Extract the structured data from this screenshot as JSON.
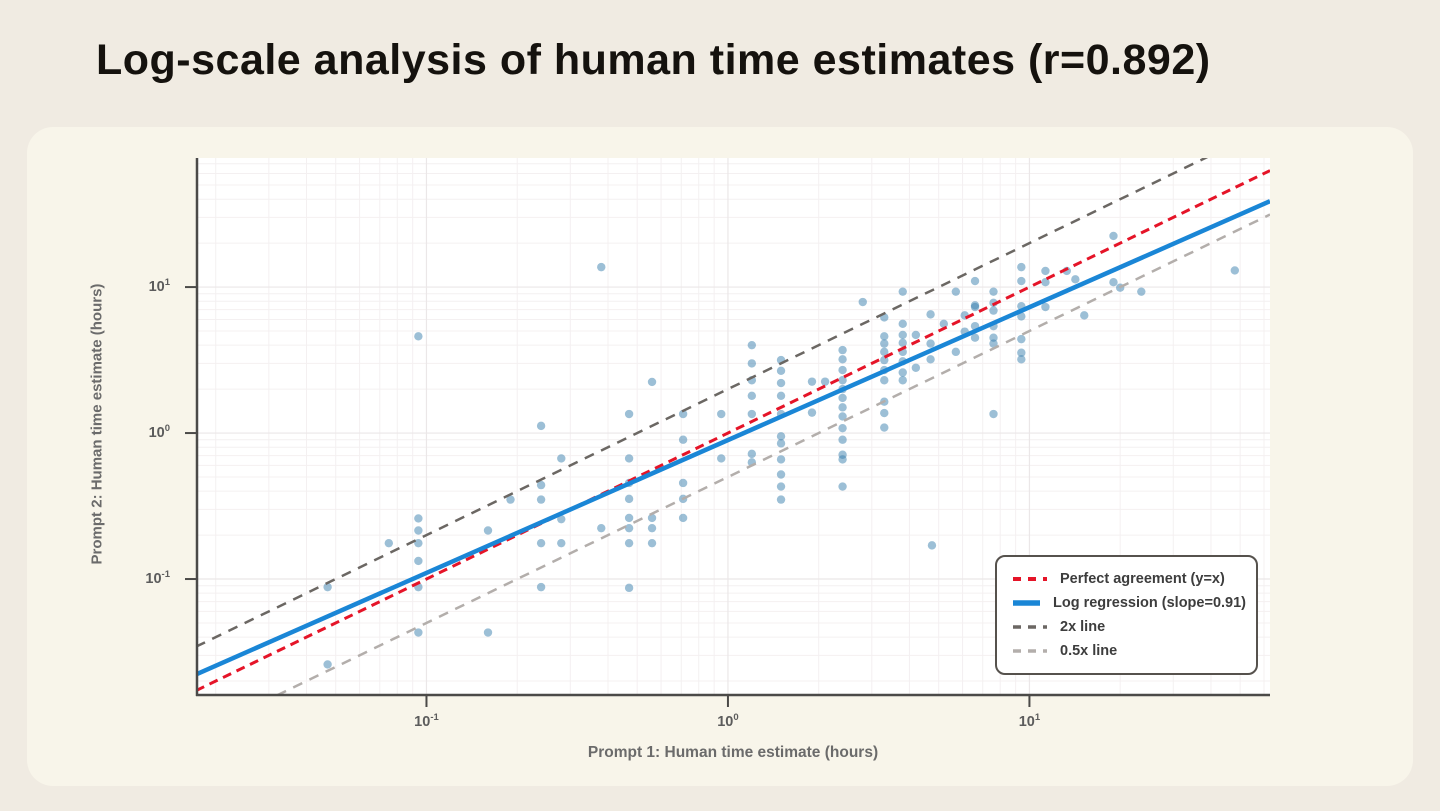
{
  "title": "Log-scale analysis of human time estimates (r=0.892)",
  "stats": {
    "correlation_r": 0.892,
    "regression_slope": 0.91
  },
  "colors": {
    "page_background": "#f0ebe2",
    "card_background": "#f8f5ea",
    "plot_background": "#ffffff",
    "axis": "#4b4a48",
    "tick_label": "#5c5c5c",
    "grid_minor": "#f4f0f1",
    "grid_major": "#ebe7e8",
    "point": "#3a7fae",
    "identity_line": "#e51428",
    "regression_line": "#1a86d6",
    "double_line": "#6b6763",
    "half_line": "#b3aeab"
  },
  "chart_data": {
    "type": "scatter",
    "title": "Log-scale analysis of human time estimates (r=0.892)",
    "xlabel": "Prompt 1: Human time estimate (hours)",
    "ylabel": "Prompt 2: Human time estimate (hours)",
    "x_scale": "log",
    "y_scale": "log",
    "xlim": [
      0.0172,
      62.8
    ],
    "ylim": [
      0.0158,
      76.6
    ],
    "grid": true,
    "x_ticks": [
      {
        "value": 0.1,
        "label": "10⁻¹",
        "exp": "-1"
      },
      {
        "value": 1,
        "label": "10⁰",
        "exp": "0"
      },
      {
        "value": 10,
        "label": "10¹",
        "exp": "1"
      }
    ],
    "y_ticks": [
      {
        "value": 0.1,
        "label": "10⁻¹",
        "exp": "-1"
      },
      {
        "value": 1,
        "label": "10⁰",
        "exp": "0"
      },
      {
        "value": 10,
        "label": "10¹",
        "exp": "1"
      }
    ],
    "lines": [
      {
        "id": "half-line",
        "label": "0.5x line",
        "slope_log": 1,
        "intercept_log10": -0.30103,
        "color": "#b3aeab",
        "dash": [
          10,
          8
        ],
        "width": 2.5
      },
      {
        "id": "double-line",
        "label": "2x line",
        "slope_log": 1,
        "intercept_log10": 0.30103,
        "color": "#6b6763",
        "dash": [
          10,
          8
        ],
        "width": 2.5
      },
      {
        "id": "identity-line",
        "label": "Perfect agreement (y=x)",
        "slope_log": 1,
        "intercept_log10": 0,
        "color": "#e51428",
        "dash": [
          9,
          6
        ],
        "width": 3
      },
      {
        "id": "regression-line",
        "label": "Log regression (slope=0.91)",
        "slope_log": 0.91,
        "intercept_log10": -0.048,
        "color": "#1a86d6",
        "dash": null,
        "width": 4.5
      }
    ],
    "legend": {
      "position": "lower-right",
      "entries": [
        {
          "label": "Perfect agreement (y=x)",
          "color": "#e51428",
          "dashed": true,
          "width": 3
        },
        {
          "label": "Log regression (slope=0.91)",
          "color": "#1a86d6",
          "dashed": false,
          "width": 4.5
        },
        {
          "label": "2x line",
          "color": "#6b6763",
          "dashed": true,
          "width": 2.5
        },
        {
          "label": "0.5x line",
          "color": "#b3aeab",
          "dashed": true,
          "width": 2.5
        }
      ]
    },
    "point_style": {
      "color": "#3a7fae",
      "opacity": 0.5,
      "radius": 4.2
    },
    "points": [
      [
        0.047,
        0.088
      ],
      [
        0.047,
        0.026
      ],
      [
        0.075,
        0.176
      ],
      [
        0.094,
        4.6
      ],
      [
        0.094,
        0.26
      ],
      [
        0.094,
        0.215
      ],
      [
        0.094,
        0.176
      ],
      [
        0.094,
        0.133
      ],
      [
        0.094,
        0.088
      ],
      [
        0.094,
        0.043
      ],
      [
        0.16,
        0.215
      ],
      [
        0.16,
        0.043
      ],
      [
        0.19,
        0.35
      ],
      [
        0.24,
        1.12
      ],
      [
        0.24,
        0.44
      ],
      [
        0.24,
        0.35
      ],
      [
        0.24,
        0.176
      ],
      [
        0.24,
        0.088
      ],
      [
        0.28,
        0.67
      ],
      [
        0.28,
        0.257
      ],
      [
        0.28,
        0.176
      ],
      [
        0.38,
        13.7
      ],
      [
        0.38,
        0.223
      ],
      [
        0.47,
        1.35
      ],
      [
        0.47,
        0.67
      ],
      [
        0.47,
        0.455
      ],
      [
        0.47,
        0.354
      ],
      [
        0.47,
        0.262
      ],
      [
        0.47,
        0.223
      ],
      [
        0.47,
        0.176
      ],
      [
        0.47,
        0.087
      ],
      [
        0.56,
        2.24
      ],
      [
        0.56,
        0.262
      ],
      [
        0.56,
        0.223
      ],
      [
        0.56,
        0.176
      ],
      [
        0.71,
        1.35
      ],
      [
        0.71,
        0.9
      ],
      [
        0.71,
        0.455
      ],
      [
        0.71,
        0.354
      ],
      [
        0.71,
        0.262
      ],
      [
        0.95,
        1.35
      ],
      [
        0.95,
        0.67
      ],
      [
        1.2,
        4.0
      ],
      [
        1.2,
        3.0
      ],
      [
        1.2,
        2.3
      ],
      [
        1.2,
        1.8
      ],
      [
        1.2,
        1.35
      ],
      [
        1.2,
        0.72
      ],
      [
        1.2,
        0.63
      ],
      [
        1.5,
        3.16
      ],
      [
        1.5,
        2.67
      ],
      [
        1.5,
        2.2
      ],
      [
        1.5,
        1.8
      ],
      [
        1.5,
        1.35
      ],
      [
        1.5,
        0.95
      ],
      [
        1.5,
        0.85
      ],
      [
        1.5,
        0.66
      ],
      [
        1.5,
        0.52
      ],
      [
        1.5,
        0.43
      ],
      [
        1.5,
        0.35
      ],
      [
        1.9,
        2.25
      ],
      [
        1.9,
        1.38
      ],
      [
        2.1,
        2.25
      ],
      [
        2.4,
        3.7
      ],
      [
        2.4,
        3.2
      ],
      [
        2.4,
        2.7
      ],
      [
        2.4,
        2.3
      ],
      [
        2.4,
        2.0
      ],
      [
        2.4,
        1.74
      ],
      [
        2.4,
        1.5
      ],
      [
        2.4,
        1.3
      ],
      [
        2.4,
        1.08
      ],
      [
        2.4,
        0.9
      ],
      [
        2.4,
        0.71
      ],
      [
        2.4,
        0.66
      ],
      [
        2.4,
        0.43
      ],
      [
        2.8,
        7.9
      ],
      [
        3.3,
        6.2
      ],
      [
        3.3,
        4.6
      ],
      [
        3.3,
        4.1
      ],
      [
        3.3,
        3.6
      ],
      [
        3.3,
        3.16
      ],
      [
        3.3,
        2.7
      ],
      [
        3.3,
        2.3
      ],
      [
        3.3,
        1.64
      ],
      [
        3.3,
        1.37
      ],
      [
        3.3,
        1.09
      ],
      [
        3.8,
        9.3
      ],
      [
        3.8,
        5.6
      ],
      [
        3.8,
        4.7
      ],
      [
        3.8,
        4.15
      ],
      [
        3.8,
        3.6
      ],
      [
        3.8,
        3.1
      ],
      [
        3.8,
        2.6
      ],
      [
        3.8,
        2.3
      ],
      [
        4.2,
        4.7
      ],
      [
        4.2,
        2.8
      ],
      [
        4.7,
        6.5
      ],
      [
        4.7,
        4.1
      ],
      [
        4.7,
        3.2
      ],
      [
        4.75,
        0.17
      ],
      [
        5.2,
        5.6
      ],
      [
        5.7,
        9.3
      ],
      [
        5.7,
        3.6
      ],
      [
        6.1,
        6.4
      ],
      [
        6.1,
        4.95
      ],
      [
        6.6,
        11.0
      ],
      [
        6.6,
        7.5
      ],
      [
        6.6,
        7.3
      ],
      [
        6.6,
        5.4
      ],
      [
        6.6,
        4.5
      ],
      [
        7.6,
        9.3
      ],
      [
        7.6,
        7.8
      ],
      [
        7.6,
        6.9
      ],
      [
        7.6,
        5.4
      ],
      [
        7.6,
        4.5
      ],
      [
        7.6,
        4.1
      ],
      [
        7.6,
        1.35
      ],
      [
        9.4,
        13.7
      ],
      [
        9.4,
        11.0
      ],
      [
        9.4,
        7.4
      ],
      [
        9.4,
        6.3
      ],
      [
        9.4,
        4.4
      ],
      [
        9.4,
        3.55
      ],
      [
        9.4,
        3.2
      ],
      [
        11.3,
        12.9
      ],
      [
        11.3,
        10.8
      ],
      [
        11.3,
        7.3
      ],
      [
        13.3,
        12.9
      ],
      [
        14.2,
        11.3
      ],
      [
        15.2,
        6.4
      ],
      [
        19,
        22.4
      ],
      [
        19,
        10.8
      ],
      [
        20,
        9.9
      ],
      [
        23.5,
        9.3
      ],
      [
        48,
        13
      ]
    ]
  }
}
